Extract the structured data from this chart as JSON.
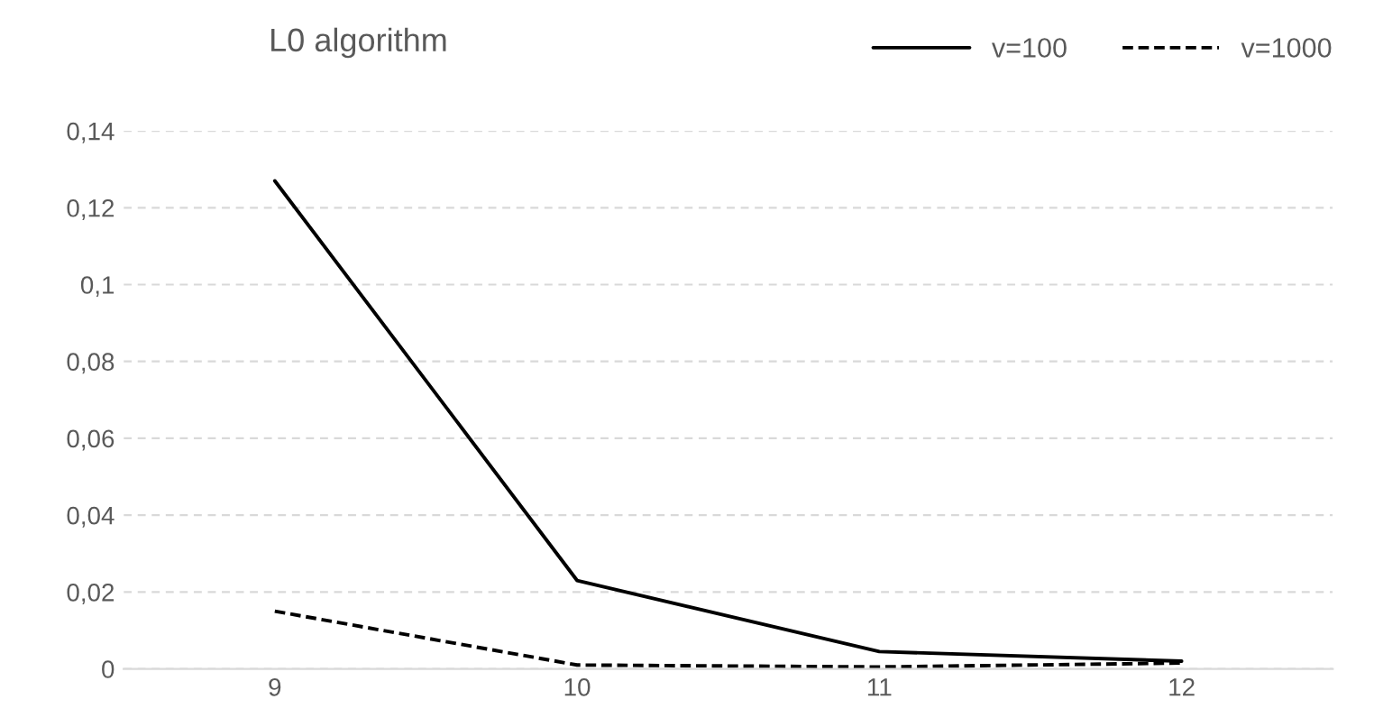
{
  "chart_data": {
    "type": "line",
    "title": "L0 algorithm",
    "categories": [
      "9",
      "10",
      "11",
      "12"
    ],
    "series": [
      {
        "name": "v=100",
        "color": "#000000",
        "line_style": "solid",
        "values": [
          0.127,
          0.023,
          0.0045,
          0.002
        ]
      },
      {
        "name": "v=1000",
        "color": "#000000",
        "line_style": "dashed",
        "values": [
          0.015,
          0.001,
          0.0005,
          0.0015
        ]
      }
    ],
    "ylim": [
      0,
      0.14
    ],
    "yticks": [
      0,
      {
        "value": 0.02,
        "label": "0,02"
      },
      {
        "value": 0.04,
        "label": "0,04"
      },
      {
        "value": 0.06,
        "label": "0,06"
      },
      {
        "value": 0.08,
        "label": "0,08"
      },
      {
        "value": 0.1,
        "label": "0,1"
      },
      {
        "value": 0.12,
        "label": "0,12"
      },
      {
        "value": 0.14,
        "label": "0,14"
      }
    ],
    "grid": "y",
    "legend": "top right"
  }
}
